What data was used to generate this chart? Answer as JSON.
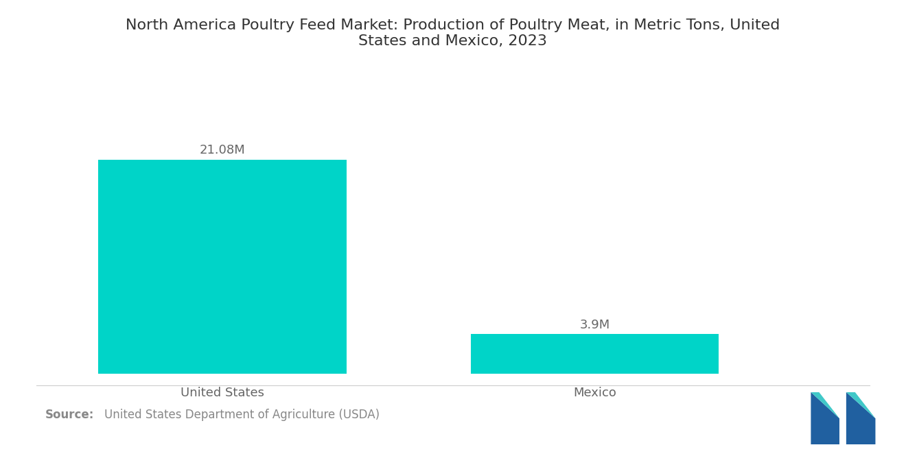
{
  "title": "North America Poultry Feed Market: Production of Poultry Meat, in Metric Tons, United\nStates and Mexico, 2023",
  "categories": [
    "United States",
    "Mexico"
  ],
  "values": [
    21.08,
    3.9
  ],
  "labels": [
    "21.08M",
    "3.9M"
  ],
  "bar_color": "#00D4C8",
  "background_color": "#ffffff",
  "text_color": "#666666",
  "title_color": "#333333",
  "source_bold": "Source:",
  "source_text": "United States Department of Agriculture (USDA)",
  "source_color": "#888888",
  "ylim": [
    0,
    26
  ],
  "bar_width": 0.28,
  "x_positions": [
    0.2,
    0.62
  ],
  "xlim": [
    0.0,
    0.92
  ],
  "title_fontsize": 16,
  "label_fontsize": 13,
  "tick_fontsize": 13,
  "source_fontsize": 12
}
